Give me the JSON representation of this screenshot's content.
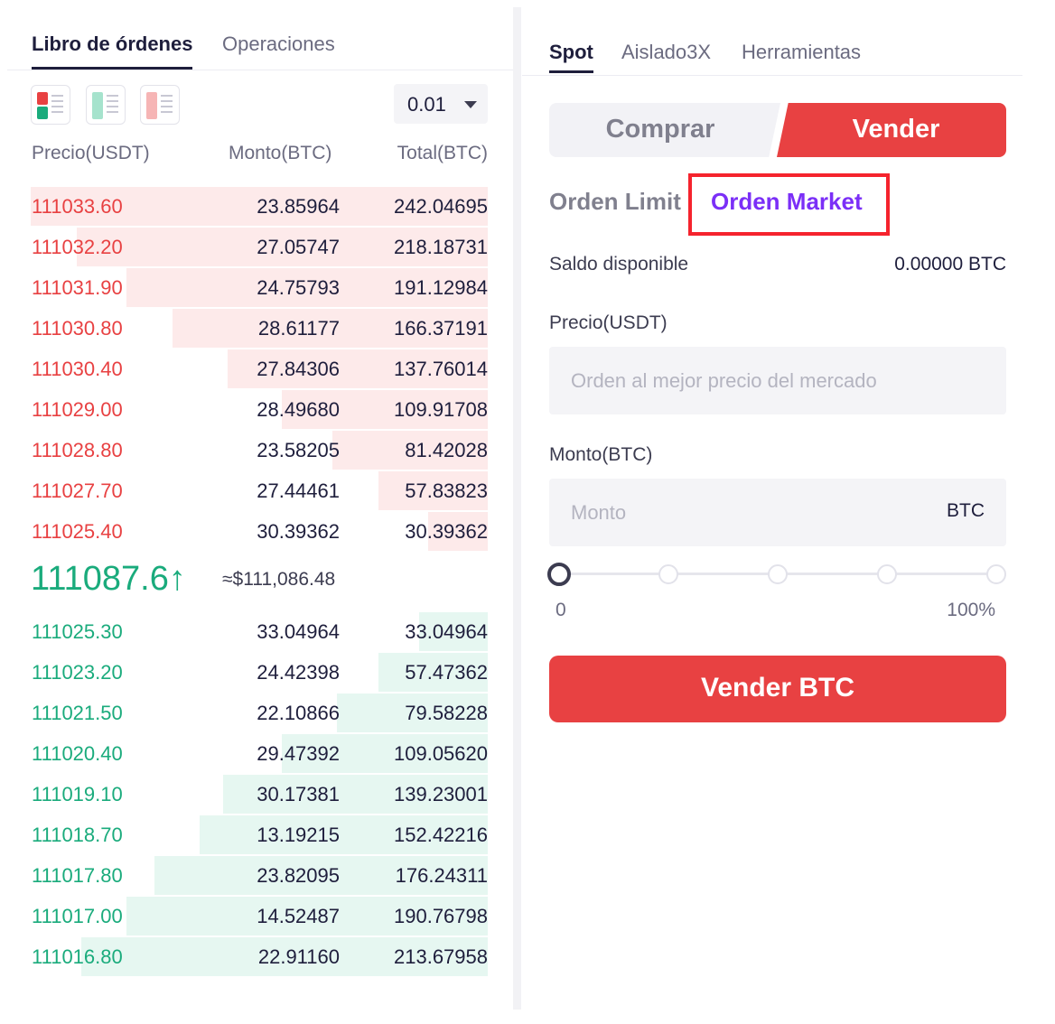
{
  "orderbook": {
    "tabs": [
      "Libro de órdenes",
      "Operaciones"
    ],
    "precision": "0.01",
    "headers": {
      "price": "Precio(USDT)",
      "amount": "Monto(BTC)",
      "total": "Total(BTC)"
    },
    "asks": [
      {
        "price": "111033.60",
        "amount": "23.85964",
        "total": "242.04695",
        "depth": 1.0
      },
      {
        "price": "111032.20",
        "amount": "27.05747",
        "total": "218.18731",
        "depth": 0.9
      },
      {
        "price": "111031.90",
        "amount": "24.75793",
        "total": "191.12984",
        "depth": 0.79
      },
      {
        "price": "111030.80",
        "amount": "28.61177",
        "total": "166.37191",
        "depth": 0.69
      },
      {
        "price": "111030.40",
        "amount": "27.84306",
        "total": "137.76014",
        "depth": 0.57
      },
      {
        "price": "111029.00",
        "amount": "28.49680",
        "total": "109.91708",
        "depth": 0.45
      },
      {
        "price": "111028.80",
        "amount": "23.58205",
        "total": "81.42028",
        "depth": 0.34
      },
      {
        "price": "111027.70",
        "amount": "27.44461",
        "total": "57.83823",
        "depth": 0.24
      },
      {
        "price": "111025.40",
        "amount": "30.39362",
        "total": "30.39362",
        "depth": 0.13
      }
    ],
    "last_price": "111087.6",
    "last_arrow": "↑",
    "last_usd": "≈$111,086.48",
    "bids": [
      {
        "price": "111025.30",
        "amount": "33.04964",
        "total": "33.04964",
        "depth": 0.15
      },
      {
        "price": "111023.20",
        "amount": "24.42398",
        "total": "57.47362",
        "depth": 0.24
      },
      {
        "price": "111021.50",
        "amount": "22.10866",
        "total": "79.58228",
        "depth": 0.33
      },
      {
        "price": "111020.40",
        "amount": "29.47392",
        "total": "109.05620",
        "depth": 0.45
      },
      {
        "price": "111019.10",
        "amount": "30.17381",
        "total": "139.23001",
        "depth": 0.58
      },
      {
        "price": "111018.70",
        "amount": "13.19215",
        "total": "152.42216",
        "depth": 0.63
      },
      {
        "price": "111017.80",
        "amount": "23.82095",
        "total": "176.24311",
        "depth": 0.73
      },
      {
        "price": "111017.00",
        "amount": "14.52487",
        "total": "190.76798",
        "depth": 0.79
      },
      {
        "price": "111016.80",
        "amount": "22.91160",
        "total": "213.67958",
        "depth": 0.89
      }
    ]
  },
  "trade": {
    "tabs": [
      "Spot",
      "Aislado3X",
      "Herramientas"
    ],
    "buy_label": "Comprar",
    "sell_label": "Vender",
    "order_limit": "Orden Limit",
    "order_market": "Orden Market",
    "balance_label": "Saldo disponible",
    "balance_value": "0.00000 BTC",
    "price_label": "Precio(USDT)",
    "price_placeholder": "Orden al mejor precio del mercado",
    "amount_label": "Monto(BTC)",
    "amount_placeholder": "Monto",
    "amount_unit": "BTC",
    "slider_min": "0",
    "slider_max": "100%",
    "slider_value": 0,
    "submit_label": "Vender BTC"
  },
  "colors": {
    "ask": "#e84142",
    "bid": "#1aab7c",
    "accent": "#7b2ff7",
    "highlight": "#f5232d"
  }
}
